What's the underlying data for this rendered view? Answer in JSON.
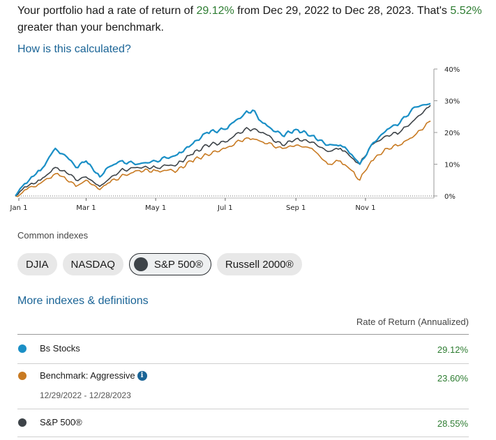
{
  "summary": {
    "part1": "Your portfolio had a rate of return of ",
    "portfolio_return": "29.12%",
    "part2": " from Dec 29, 2022 to Dec 28, 2023. That's ",
    "difference": "5.52%",
    "part3": " greater than your benchmark."
  },
  "how_link": "How is this calculated?",
  "chart_data": {
    "type": "line",
    "x_ticks": [
      "Jan 1",
      "Mar 1",
      "May 1",
      "Jul 1",
      "Sep 1",
      "Nov 1"
    ],
    "y_ticks": [
      "40%",
      "30%",
      "20%",
      "10%",
      "0%"
    ],
    "ylim": [
      0,
      40
    ],
    "xlim": [
      "2023-01-01",
      "2023-12-31"
    ],
    "y_axis_position": "right",
    "grid": false,
    "series": [
      {
        "name": "Bs Stocks",
        "color": "#1a8fc6",
        "points": [
          [
            "2022-12-29",
            0
          ],
          [
            "2023-01-04",
            3
          ],
          [
            "2023-01-12",
            6
          ],
          [
            "2023-01-20",
            8
          ],
          [
            "2023-02-02",
            15
          ],
          [
            "2023-02-10",
            13
          ],
          [
            "2023-02-20",
            9
          ],
          [
            "2023-03-01",
            11
          ],
          [
            "2023-03-13",
            6
          ],
          [
            "2023-03-20",
            9
          ],
          [
            "2023-03-31",
            11
          ],
          [
            "2023-04-15",
            10
          ],
          [
            "2023-05-01",
            11
          ],
          [
            "2023-05-20",
            13
          ],
          [
            "2023-06-01",
            16
          ],
          [
            "2023-06-15",
            20
          ],
          [
            "2023-07-01",
            21
          ],
          [
            "2023-07-18",
            26
          ],
          [
            "2023-07-25",
            27
          ],
          [
            "2023-08-03",
            23
          ],
          [
            "2023-08-20",
            19
          ],
          [
            "2023-09-01",
            21
          ],
          [
            "2023-09-15",
            19
          ],
          [
            "2023-09-29",
            16
          ],
          [
            "2023-10-10",
            16
          ],
          [
            "2023-10-20",
            13
          ],
          [
            "2023-10-27",
            10
          ],
          [
            "2023-11-06",
            16
          ],
          [
            "2023-11-20",
            21
          ],
          [
            "2023-12-01",
            23
          ],
          [
            "2023-12-14",
            28
          ],
          [
            "2023-12-28",
            29.12
          ]
        ]
      },
      {
        "name": "S&P 500®",
        "color": "#3d4348",
        "points": [
          [
            "2022-12-29",
            0
          ],
          [
            "2023-01-04",
            2
          ],
          [
            "2023-01-12",
            4
          ],
          [
            "2023-01-20",
            5
          ],
          [
            "2023-02-02",
            9
          ],
          [
            "2023-02-10",
            8
          ],
          [
            "2023-02-20",
            5
          ],
          [
            "2023-03-01",
            6
          ],
          [
            "2023-03-13",
            3
          ],
          [
            "2023-03-20",
            5
          ],
          [
            "2023-03-31",
            8
          ],
          [
            "2023-04-15",
            9
          ],
          [
            "2023-05-01",
            9
          ],
          [
            "2023-05-20",
            10
          ],
          [
            "2023-06-01",
            13
          ],
          [
            "2023-06-15",
            16
          ],
          [
            "2023-07-01",
            17
          ],
          [
            "2023-07-18",
            21
          ],
          [
            "2023-07-25",
            21
          ],
          [
            "2023-08-03",
            20
          ],
          [
            "2023-08-20",
            16
          ],
          [
            "2023-09-01",
            18
          ],
          [
            "2023-09-15",
            17
          ],
          [
            "2023-09-29",
            14
          ],
          [
            "2023-10-10",
            15
          ],
          [
            "2023-10-20",
            12
          ],
          [
            "2023-10-27",
            10
          ],
          [
            "2023-11-06",
            16
          ],
          [
            "2023-11-20",
            19
          ],
          [
            "2023-12-01",
            20
          ],
          [
            "2023-12-14",
            24
          ],
          [
            "2023-12-28",
            28.55
          ]
        ]
      },
      {
        "name": "Benchmark: Aggressive",
        "color": "#c87a22",
        "points": [
          [
            "2022-12-29",
            0
          ],
          [
            "2023-01-04",
            1
          ],
          [
            "2023-01-12",
            3
          ],
          [
            "2023-01-20",
            4
          ],
          [
            "2023-02-02",
            7
          ],
          [
            "2023-02-10",
            6
          ],
          [
            "2023-02-20",
            3
          ],
          [
            "2023-03-01",
            5
          ],
          [
            "2023-03-13",
            2
          ],
          [
            "2023-03-20",
            4
          ],
          [
            "2023-03-31",
            6
          ],
          [
            "2023-04-15",
            8
          ],
          [
            "2023-05-01",
            8
          ],
          [
            "2023-05-20",
            8
          ],
          [
            "2023-06-01",
            11
          ],
          [
            "2023-06-15",
            13
          ],
          [
            "2023-07-01",
            15
          ],
          [
            "2023-07-18",
            18
          ],
          [
            "2023-07-25",
            18
          ],
          [
            "2023-08-03",
            17
          ],
          [
            "2023-08-20",
            15
          ],
          [
            "2023-09-01",
            16
          ],
          [
            "2023-09-15",
            15
          ],
          [
            "2023-09-29",
            10
          ],
          [
            "2023-10-10",
            11
          ],
          [
            "2023-10-20",
            8
          ],
          [
            "2023-10-27",
            5
          ],
          [
            "2023-11-06",
            11
          ],
          [
            "2023-11-20",
            15
          ],
          [
            "2023-12-01",
            16
          ],
          [
            "2023-12-14",
            19
          ],
          [
            "2023-12-28",
            23.6
          ]
        ]
      }
    ]
  },
  "common_indexes": {
    "label": "Common indexes",
    "chips": [
      "DJIA",
      "NASDAQ",
      "S&P 500®",
      "Russell 2000®"
    ],
    "selected": "S&P 500®"
  },
  "more_link": "More indexes & definitions",
  "table": {
    "header": "Rate of Return (Annualized)",
    "rows": [
      {
        "name": "Bs Stocks",
        "value": "29.12%",
        "color": "#1a8fc6"
      },
      {
        "name": "Benchmark: Aggressive",
        "value": "23.60%",
        "color": "#c87a22",
        "date_range": "12/29/2022 - 12/28/2023"
      },
      {
        "name": "S&P 500®",
        "value": "28.55%",
        "color": "#3d4348"
      }
    ]
  }
}
